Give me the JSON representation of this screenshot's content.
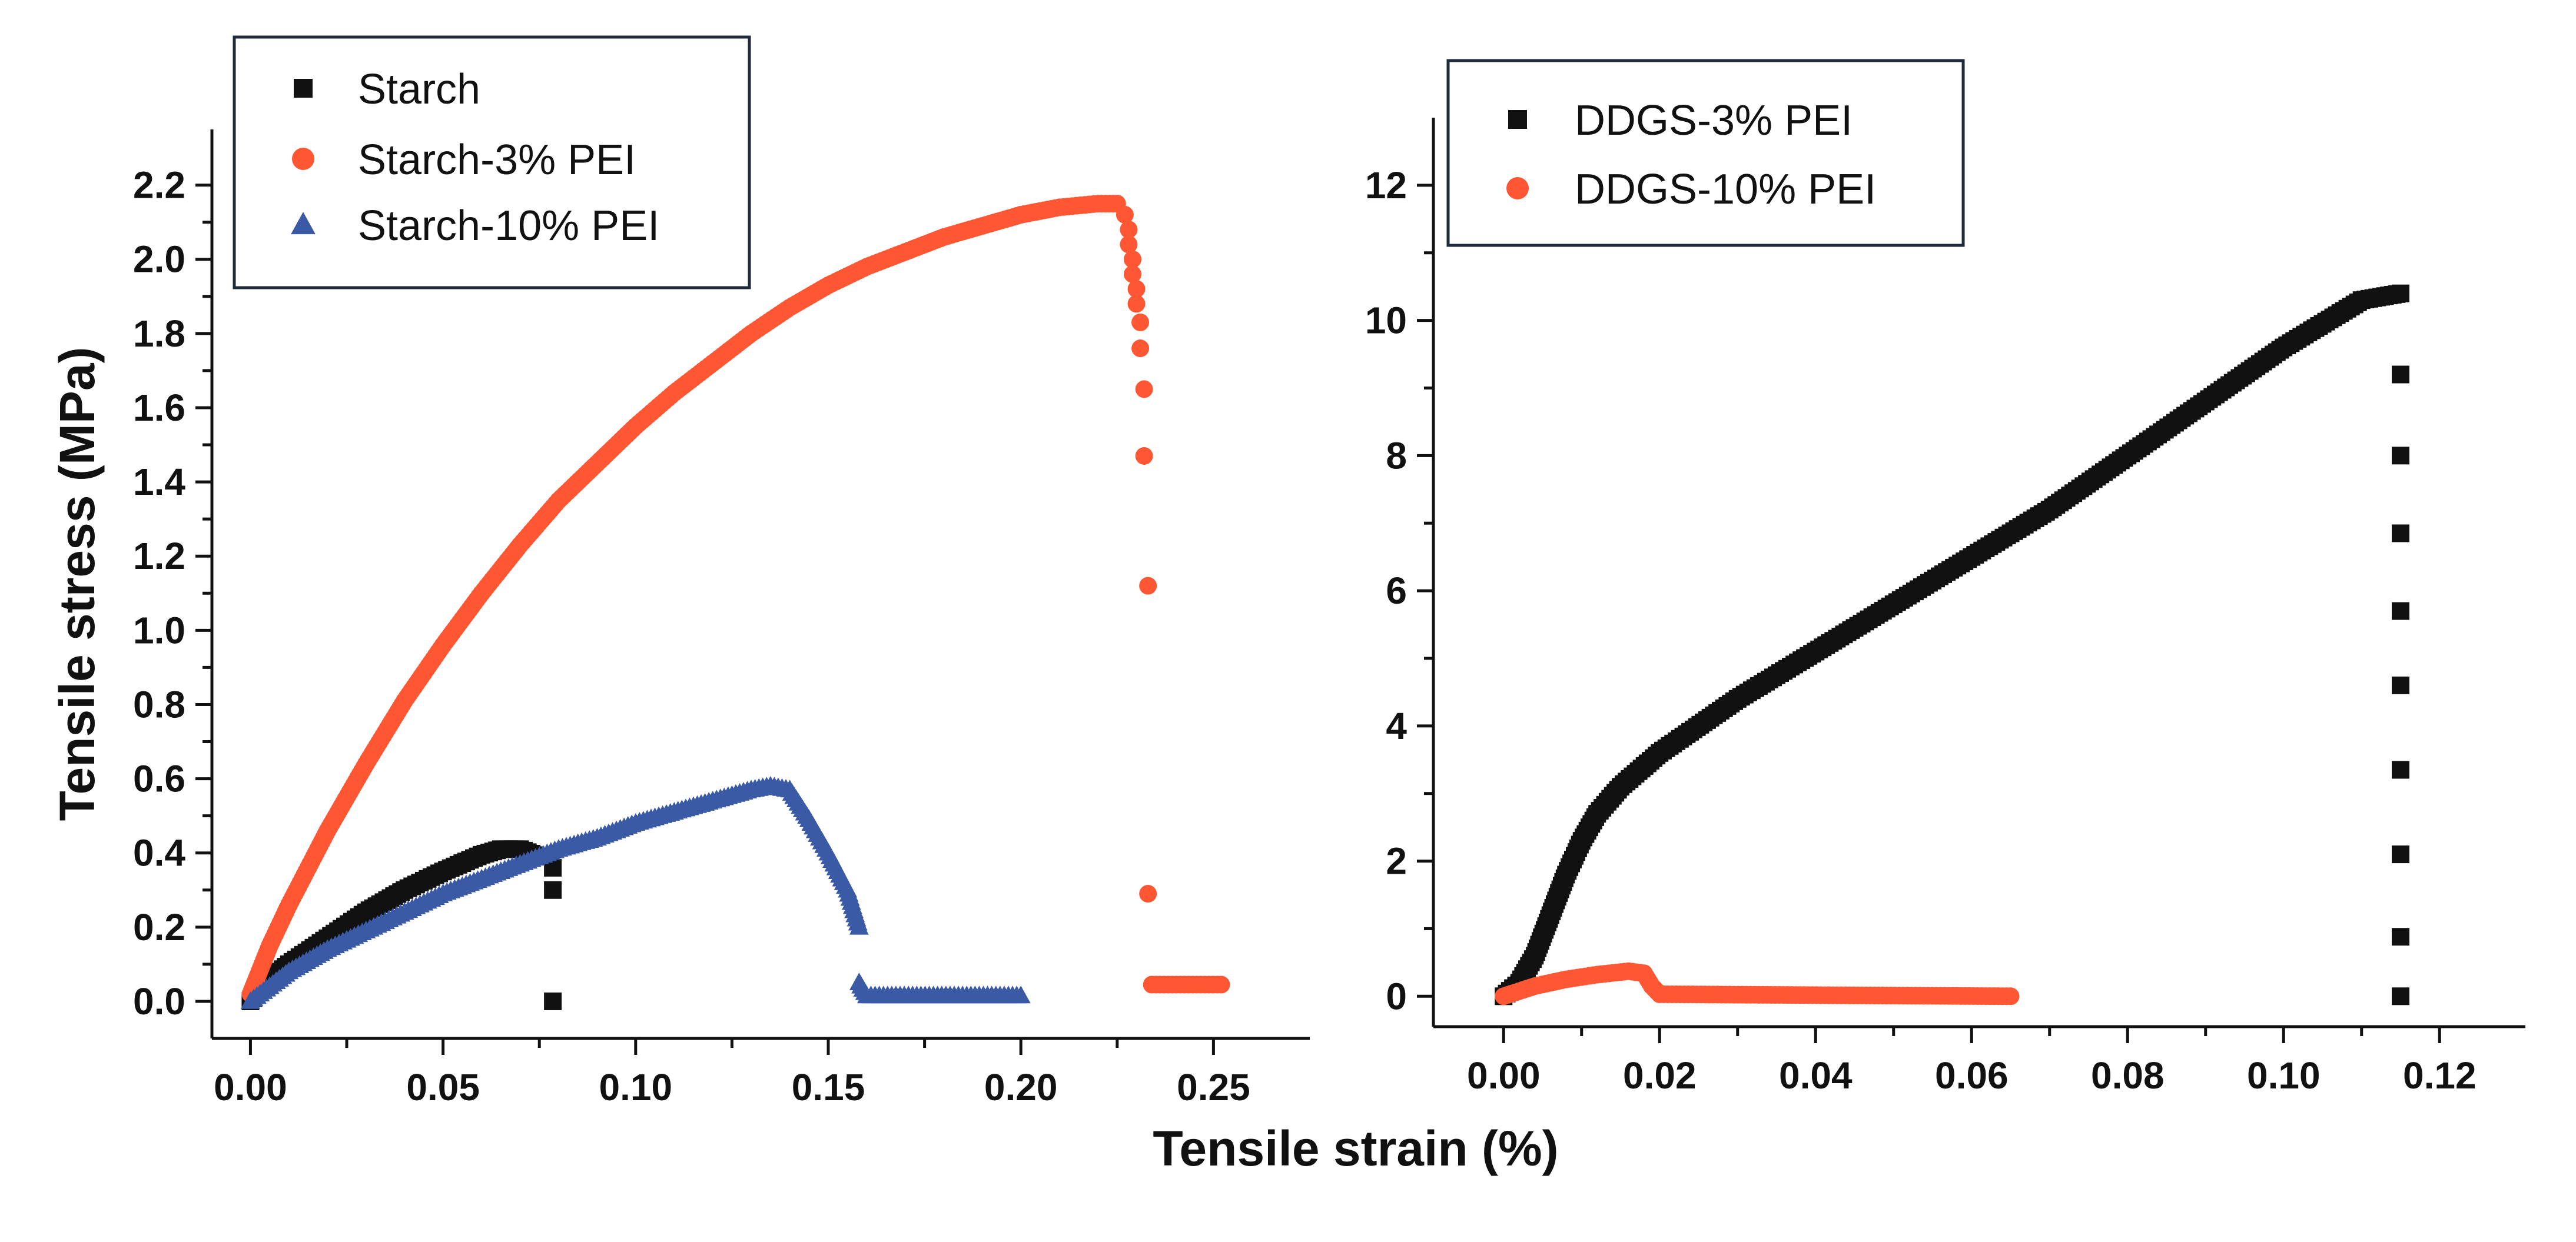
{
  "chart_data": [
    {
      "type": "scatter",
      "panel": "left",
      "ylabel": "Tensile stress (MPa)",
      "xlabel": "",
      "xlim": [
        -0.01,
        0.275
      ],
      "ylim": [
        -0.1,
        2.35
      ],
      "xticks": [
        0.0,
        0.05,
        0.1,
        0.15,
        0.2,
        0.25
      ],
      "xtick_labels": [
        "0.00",
        "0.05",
        "0.10",
        "0.15",
        "0.20",
        "0.25"
      ],
      "yticks": [
        0.0,
        0.2,
        0.4,
        0.6,
        0.8,
        1.0,
        1.2,
        1.4,
        1.6,
        1.8,
        2.0,
        2.2
      ],
      "ytick_labels": [
        "0.0",
        "0.2",
        "0.4",
        "0.6",
        "0.8",
        "1.0",
        "1.2",
        "1.4",
        "1.6",
        "1.8",
        "2.0",
        "2.2"
      ],
      "legend_position": "top-left",
      "series": [
        {
          "name": "Starch",
          "marker": "square",
          "color": "#111111",
          "curve": [
            [
              0.0,
              0.0
            ],
            [
              0.005,
              0.06
            ],
            [
              0.01,
              0.1
            ],
            [
              0.02,
              0.17
            ],
            [
              0.03,
              0.24
            ],
            [
              0.04,
              0.3
            ],
            [
              0.05,
              0.35
            ],
            [
              0.06,
              0.395
            ],
            [
              0.065,
              0.41
            ],
            [
              0.07,
              0.41
            ],
            [
              0.075,
              0.39
            ]
          ],
          "points": [
            [
              0.0785,
              0.36
            ],
            [
              0.0785,
              0.3
            ],
            [
              0.0785,
              0.0
            ]
          ]
        },
        {
          "name": "Starch-3% PEI",
          "marker": "circle",
          "color": "#ff5733",
          "curve": [
            [
              0.0,
              0.02
            ],
            [
              0.005,
              0.15
            ],
            [
              0.01,
              0.26
            ],
            [
              0.02,
              0.46
            ],
            [
              0.03,
              0.64
            ],
            [
              0.04,
              0.81
            ],
            [
              0.05,
              0.96
            ],
            [
              0.06,
              1.1
            ],
            [
              0.07,
              1.23
            ],
            [
              0.08,
              1.35
            ],
            [
              0.09,
              1.45
            ],
            [
              0.1,
              1.55
            ],
            [
              0.11,
              1.64
            ],
            [
              0.12,
              1.72
            ],
            [
              0.13,
              1.8
            ],
            [
              0.14,
              1.87
            ],
            [
              0.15,
              1.93
            ],
            [
              0.16,
              1.98
            ],
            [
              0.17,
              2.02
            ],
            [
              0.18,
              2.06
            ],
            [
              0.19,
              2.09
            ],
            [
              0.2,
              2.12
            ],
            [
              0.21,
              2.14
            ],
            [
              0.22,
              2.15
            ],
            [
              0.225,
              2.15
            ]
          ],
          "points": [
            [
              0.227,
              2.12
            ],
            [
              0.228,
              2.08
            ],
            [
              0.228,
              2.04
            ],
            [
              0.229,
              2.0
            ],
            [
              0.229,
              1.96
            ],
            [
              0.23,
              1.92
            ],
            [
              0.23,
              1.88
            ],
            [
              0.231,
              1.83
            ],
            [
              0.231,
              1.76
            ],
            [
              0.232,
              1.65
            ],
            [
              0.232,
              1.47
            ],
            [
              0.233,
              1.12
            ],
            [
              0.233,
              0.29
            ]
          ],
          "tail": [
            [
              0.234,
              0.045
            ],
            [
              0.252,
              0.045
            ]
          ]
        },
        {
          "name": "Starch-10% PEI",
          "marker": "triangle",
          "color": "#3b5aa6",
          "curve": [
            [
              0.0,
              0.0
            ],
            [
              0.01,
              0.08
            ],
            [
              0.02,
              0.14
            ],
            [
              0.03,
              0.19
            ],
            [
              0.04,
              0.24
            ],
            [
              0.05,
              0.29
            ],
            [
              0.06,
              0.33
            ],
            [
              0.07,
              0.37
            ],
            [
              0.08,
              0.41
            ],
            [
              0.09,
              0.44
            ],
            [
              0.1,
              0.48
            ],
            [
              0.11,
              0.51
            ],
            [
              0.12,
              0.54
            ],
            [
              0.13,
              0.57
            ],
            [
              0.135,
              0.58
            ],
            [
              0.14,
              0.57
            ],
            [
              0.145,
              0.49
            ],
            [
              0.15,
              0.4
            ],
            [
              0.155,
              0.3
            ],
            [
              0.158,
              0.2
            ]
          ],
          "tail": [
            [
              0.158,
              0.05
            ],
            [
              0.16,
              0.015
            ],
            [
              0.2,
              0.015
            ]
          ]
        }
      ]
    },
    {
      "type": "scatter",
      "panel": "right",
      "ylabel": "",
      "xlabel": "",
      "xlim": [
        -0.009,
        0.131
      ],
      "ylim": [
        -0.45,
        13.0
      ],
      "xticks": [
        0.0,
        0.02,
        0.04,
        0.06,
        0.08,
        0.1,
        0.12
      ],
      "xtick_labels": [
        "0.00",
        "0.02",
        "0.04",
        "0.06",
        "0.08",
        "0.10",
        "0.12"
      ],
      "yticks": [
        0,
        2,
        4,
        6,
        8,
        10,
        12
      ],
      "ytick_labels": [
        "0",
        "2",
        "4",
        "6",
        "8",
        "10",
        "12"
      ],
      "legend_position": "top-left",
      "series": [
        {
          "name": "DDGS-3% PEI",
          "marker": "square",
          "color": "#111111",
          "curve": [
            [
              0.0,
              0.0
            ],
            [
              0.002,
              0.2
            ],
            [
              0.004,
              0.6
            ],
            [
              0.006,
              1.2
            ],
            [
              0.008,
              1.8
            ],
            [
              0.01,
              2.3
            ],
            [
              0.012,
              2.7
            ],
            [
              0.015,
              3.1
            ],
            [
              0.02,
              3.6
            ],
            [
              0.03,
              4.4
            ],
            [
              0.04,
              5.1
            ],
            [
              0.05,
              5.8
            ],
            [
              0.06,
              6.5
            ],
            [
              0.07,
              7.2
            ],
            [
              0.08,
              8.0
            ],
            [
              0.09,
              8.8
            ],
            [
              0.1,
              9.6
            ],
            [
              0.11,
              10.3
            ],
            [
              0.115,
              10.4
            ]
          ],
          "points": [
            [
              0.115,
              9.2
            ],
            [
              0.115,
              8.0
            ],
            [
              0.115,
              6.85
            ],
            [
              0.115,
              5.7
            ],
            [
              0.115,
              4.6
            ],
            [
              0.115,
              3.35
            ],
            [
              0.115,
              2.1
            ],
            [
              0.115,
              0.88
            ],
            [
              0.115,
              0.0
            ]
          ]
        },
        {
          "name": "DDGS-10% PEI",
          "marker": "circle",
          "color": "#ff5733",
          "curve": [
            [
              0.0,
              0.0
            ],
            [
              0.004,
              0.15
            ],
            [
              0.008,
              0.25
            ],
            [
              0.012,
              0.32
            ],
            [
              0.016,
              0.37
            ],
            [
              0.018,
              0.34
            ],
            [
              0.019,
              0.15
            ],
            [
              0.02,
              0.03
            ],
            [
              0.065,
              0.0
            ]
          ]
        }
      ]
    }
  ],
  "figure": {
    "shared_xlabel": "Tensile strain (%)"
  }
}
